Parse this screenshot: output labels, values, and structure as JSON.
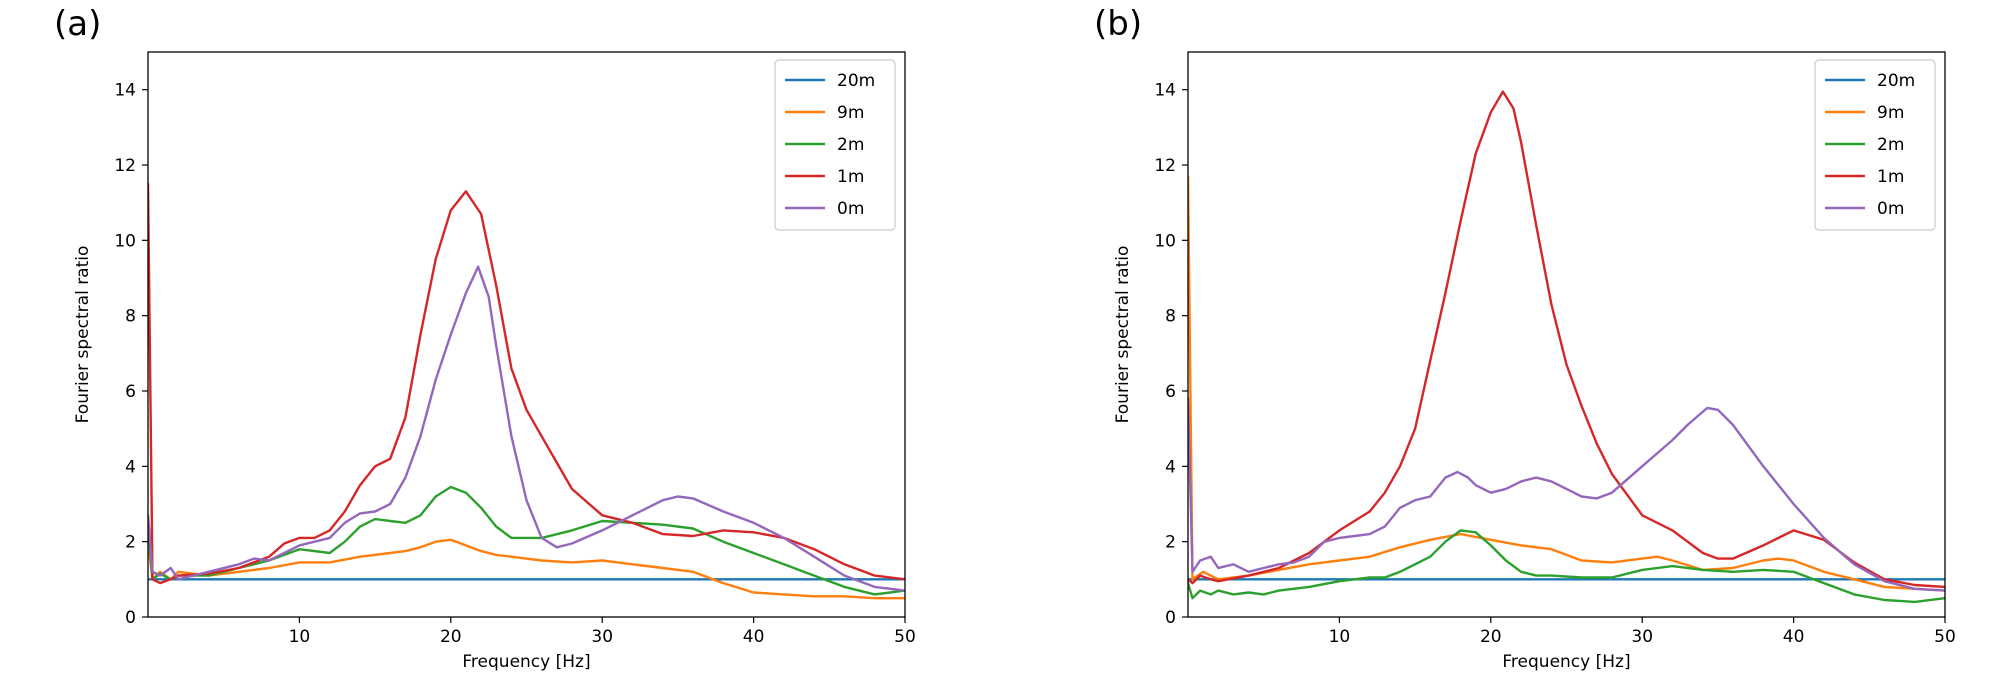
{
  "chart_data": [
    {
      "panel_label": "(a)",
      "type": "line",
      "xlabel": "Frequency [Hz]",
      "ylabel": "Fourier spectral ratio",
      "xlim": [
        0,
        50
      ],
      "ylim": [
        0,
        15
      ],
      "xticks": [
        10,
        20,
        30,
        40,
        50
      ],
      "yticks": [
        0,
        2,
        4,
        6,
        8,
        10,
        12,
        14
      ],
      "grid": false,
      "legend_position": "top-right",
      "series": [
        {
          "name": "20m",
          "color": "#1f77b4",
          "x": [
            0,
            50
          ],
          "y": [
            1.0,
            1.0
          ]
        },
        {
          "name": "9m",
          "color": "#ff7f0e",
          "x": [
            0,
            0.3,
            0.8,
            1.5,
            2,
            4,
            6,
            8,
            10,
            12,
            14,
            16,
            17,
            18,
            19,
            20,
            21,
            22,
            23,
            24,
            26,
            28,
            30,
            32,
            34,
            36,
            38,
            40,
            42,
            44,
            46,
            48,
            50
          ],
          "y": [
            2.0,
            1.0,
            1.2,
            1.0,
            1.2,
            1.1,
            1.2,
            1.3,
            1.45,
            1.45,
            1.6,
            1.7,
            1.75,
            1.85,
            2.0,
            2.05,
            1.9,
            1.75,
            1.65,
            1.6,
            1.5,
            1.45,
            1.5,
            1.4,
            1.3,
            1.2,
            0.9,
            0.65,
            0.6,
            0.55,
            0.55,
            0.5,
            0.5
          ]
        },
        {
          "name": "2m",
          "color": "#2ca02c",
          "x": [
            0,
            0.3,
            0.8,
            1.5,
            2,
            4,
            6,
            8,
            10,
            12,
            13,
            14,
            15,
            16,
            17,
            18,
            19,
            20,
            21,
            22,
            23,
            24,
            26,
            28,
            30,
            32,
            34,
            36,
            38,
            40,
            42,
            44,
            46,
            48,
            50
          ],
          "y": [
            2.5,
            1.0,
            1.15,
            1.0,
            1.1,
            1.1,
            1.3,
            1.5,
            1.8,
            1.7,
            2.0,
            2.4,
            2.6,
            2.55,
            2.5,
            2.7,
            3.2,
            3.45,
            3.3,
            2.9,
            2.4,
            2.1,
            2.1,
            2.3,
            2.55,
            2.5,
            2.45,
            2.35,
            2.0,
            1.7,
            1.4,
            1.1,
            0.8,
            0.6,
            0.7
          ]
        },
        {
          "name": "1m",
          "color": "#d62728",
          "x": [
            0,
            0.3,
            0.8,
            1.5,
            2,
            4,
            6,
            8,
            9,
            10,
            11,
            12,
            13,
            14,
            15,
            16,
            17,
            18,
            19,
            20,
            21,
            22,
            23,
            24,
            25,
            26,
            27,
            28,
            30,
            32,
            34,
            36,
            38,
            40,
            42,
            44,
            46,
            48,
            50
          ],
          "y": [
            11.5,
            1.0,
            0.9,
            1.0,
            1.1,
            1.15,
            1.3,
            1.6,
            1.95,
            2.1,
            2.1,
            2.3,
            2.8,
            3.5,
            4.0,
            4.2,
            5.3,
            7.5,
            9.5,
            10.8,
            11.3,
            10.7,
            8.8,
            6.6,
            5.5,
            4.8,
            4.1,
            3.4,
            2.7,
            2.5,
            2.2,
            2.15,
            2.3,
            2.25,
            2.1,
            1.8,
            1.4,
            1.1,
            1.0
          ]
        },
        {
          "name": "0m",
          "color": "#9467bd",
          "x": [
            0,
            0.3,
            0.8,
            1.5,
            2,
            4,
            6,
            7,
            8,
            10,
            12,
            13,
            14,
            15,
            16,
            17,
            18,
            19,
            20,
            21,
            21.8,
            22.5,
            23,
            24,
            25,
            26,
            27,
            28,
            30,
            32,
            34,
            35,
            36,
            38,
            40,
            42,
            44,
            46,
            48,
            50
          ],
          "y": [
            2.7,
            1.2,
            1.1,
            1.3,
            1.0,
            1.2,
            1.4,
            1.55,
            1.5,
            1.9,
            2.1,
            2.5,
            2.75,
            2.8,
            3.0,
            3.7,
            4.8,
            6.3,
            7.5,
            8.6,
            9.3,
            8.5,
            7.2,
            4.8,
            3.1,
            2.1,
            1.85,
            1.95,
            2.3,
            2.7,
            3.1,
            3.2,
            3.15,
            2.8,
            2.5,
            2.1,
            1.6,
            1.1,
            0.8,
            0.7
          ]
        }
      ]
    },
    {
      "panel_label": "(b)",
      "type": "line",
      "xlabel": "Frequency [Hz]",
      "ylabel": "Fourier spectral ratio",
      "xlim": [
        0,
        50
      ],
      "ylim": [
        0,
        15
      ],
      "xticks": [
        10,
        20,
        30,
        40,
        50
      ],
      "yticks": [
        0,
        2,
        4,
        6,
        8,
        10,
        12,
        14
      ],
      "grid": false,
      "legend_position": "top-right",
      "series": [
        {
          "name": "20m",
          "color": "#1f77b4",
          "x": [
            0,
            50
          ],
          "y": [
            1.0,
            1.0
          ]
        },
        {
          "name": "9m",
          "color": "#ff7f0e",
          "x": [
            0,
            0.3,
            1,
            2,
            4,
            6,
            8,
            10,
            12,
            14,
            16,
            18,
            20,
            22,
            24,
            26,
            28,
            30,
            31,
            32,
            34,
            36,
            38,
            39,
            40,
            42,
            44,
            46,
            48,
            50
          ],
          "y": [
            11.7,
            1.0,
            1.2,
            1.0,
            1.1,
            1.25,
            1.4,
            1.5,
            1.6,
            1.85,
            2.05,
            2.2,
            2.05,
            1.9,
            1.8,
            1.5,
            1.45,
            1.55,
            1.6,
            1.5,
            1.25,
            1.3,
            1.5,
            1.55,
            1.5,
            1.2,
            1.0,
            0.8,
            0.75,
            0.7
          ]
        },
        {
          "name": "2m",
          "color": "#2ca02c",
          "x": [
            0,
            0.3,
            0.8,
            1.5,
            2,
            3,
            4,
            5,
            6,
            8,
            10,
            12,
            13,
            14,
            15,
            16,
            17,
            18,
            19,
            20,
            21,
            22,
            23,
            24,
            26,
            28,
            30,
            32,
            34,
            36,
            38,
            40,
            42,
            44,
            46,
            48,
            50
          ],
          "y": [
            0.9,
            0.5,
            0.7,
            0.6,
            0.7,
            0.6,
            0.65,
            0.6,
            0.7,
            0.8,
            0.95,
            1.05,
            1.05,
            1.2,
            1.4,
            1.6,
            2.0,
            2.3,
            2.25,
            1.9,
            1.5,
            1.2,
            1.1,
            1.1,
            1.05,
            1.05,
            1.25,
            1.35,
            1.25,
            1.2,
            1.25,
            1.2,
            0.9,
            0.6,
            0.45,
            0.4,
            0.5
          ]
        },
        {
          "name": "1m",
          "color": "#d62728",
          "x": [
            0,
            0.3,
            0.8,
            1.5,
            2,
            4,
            6,
            8,
            10,
            12,
            13,
            14,
            15,
            16,
            17,
            18,
            19,
            20,
            20.8,
            21.5,
            22,
            23,
            24,
            25,
            26,
            27,
            28,
            30,
            32,
            34,
            35,
            36,
            38,
            40,
            42,
            44,
            46,
            48,
            50
          ],
          "y": [
            1.0,
            0.9,
            1.1,
            1.0,
            0.95,
            1.1,
            1.3,
            1.7,
            2.3,
            2.8,
            3.3,
            4.0,
            5.0,
            6.8,
            8.6,
            10.5,
            12.3,
            13.4,
            13.95,
            13.5,
            12.6,
            10.4,
            8.3,
            6.7,
            5.6,
            4.6,
            3.8,
            2.7,
            2.3,
            1.7,
            1.55,
            1.55,
            1.9,
            2.3,
            2.05,
            1.45,
            1.0,
            0.85,
            0.8
          ]
        },
        {
          "name": "0m",
          "color": "#9467bd",
          "x": [
            0,
            0.3,
            0.8,
            1.5,
            2,
            3,
            4,
            5,
            6,
            7,
            8,
            9,
            10,
            11,
            12,
            13,
            14,
            15,
            16,
            17,
            17.8,
            18.5,
            19,
            20,
            21,
            22,
            23,
            24,
            25,
            26,
            27,
            28,
            30,
            32,
            33,
            34.3,
            35,
            36,
            38,
            40,
            42,
            44,
            46,
            48,
            50
          ],
          "y": [
            5.8,
            1.2,
            1.5,
            1.6,
            1.3,
            1.4,
            1.2,
            1.3,
            1.4,
            1.45,
            1.6,
            2.0,
            2.1,
            2.15,
            2.2,
            2.4,
            2.9,
            3.1,
            3.2,
            3.7,
            3.85,
            3.7,
            3.5,
            3.3,
            3.4,
            3.6,
            3.7,
            3.6,
            3.4,
            3.2,
            3.15,
            3.3,
            4.0,
            4.7,
            5.1,
            5.55,
            5.5,
            5.1,
            4.0,
            3.0,
            2.1,
            1.4,
            0.95,
            0.75,
            0.7
          ]
        }
      ]
    }
  ]
}
